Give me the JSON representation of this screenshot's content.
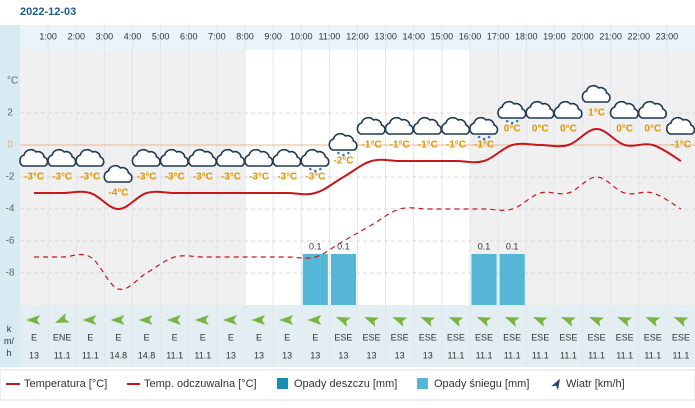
{
  "chart_data": {
    "type": "line",
    "title": "2022-12-03",
    "categories": [
      null,
      "1:00",
      "2:00",
      "3:00",
      "4:00",
      "5:00",
      "6:00",
      "7:00",
      "8:00",
      "9:00",
      "10:00",
      "11:00",
      "12:00",
      "13:00",
      "14:00",
      "15:00",
      "16:00",
      "17:00",
      "18:00",
      "19:00",
      "20:00",
      "21:00",
      "22:00",
      "23:00"
    ],
    "y_label": "°C",
    "ylim": [
      -10,
      6
    ],
    "yticks": [
      -8,
      -6,
      -4,
      -2,
      0,
      2
    ],
    "grid": true,
    "series": [
      {
        "name": "Temperatura [°C]",
        "color": "#c8161d",
        "values": [
          -3,
          -3,
          -3,
          -4,
          -3,
          -3,
          -3,
          -3,
          -3,
          -3,
          -3,
          -2,
          -1,
          -1,
          -1,
          -1,
          -1,
          0,
          0,
          0,
          1,
          0,
          0,
          -1
        ],
        "value_labels": [
          "-3°C",
          "-3°C",
          "-3°C",
          "-4°C",
          "-3°C",
          "-3°C",
          "-3°C",
          "-3°C",
          "-3°C",
          "-3°C",
          "-3°C",
          "-2°C",
          "-1°C",
          "-1°C",
          "-1°C",
          "-1°C",
          "-1°C",
          "0°C",
          "0°C",
          "0°C",
          "1°C",
          "0°C",
          "0°C",
          "-1°C"
        ]
      },
      {
        "name": "Temp. odczuwalna [°C]",
        "color": "#c8161d",
        "dashed": true,
        "values": [
          -7,
          -7,
          -7,
          -9,
          -8,
          -7,
          -7,
          -7,
          -7,
          -7,
          -7,
          -6,
          -5,
          -4,
          -4,
          -4,
          -4,
          -4,
          -3,
          -3,
          -2,
          -3,
          -3,
          -4
        ]
      },
      {
        "name": "Opady deszczu [mm]",
        "color": "#1b8db3",
        "type": "bar",
        "values": [
          null,
          null,
          null,
          null,
          null,
          null,
          null,
          null,
          null,
          null,
          null,
          null,
          null,
          null,
          null,
          null,
          null,
          null,
          null,
          null,
          null,
          null,
          null,
          null
        ]
      },
      {
        "name": "Opady śniegu [mm]",
        "color": "#55b6d6",
        "type": "bar",
        "values": [
          null,
          null,
          null,
          null,
          null,
          null,
          null,
          null,
          null,
          null,
          0.1,
          0.1,
          null,
          null,
          null,
          null,
          0.1,
          0.1,
          null,
          null,
          null,
          null,
          null,
          null
        ]
      }
    ],
    "wind": {
      "name": "Wiatr [km/h]",
      "unit_label": "km/h",
      "directions": [
        "E",
        "ENE",
        "E",
        "E",
        "E",
        "E",
        "E",
        "E",
        "E",
        "E",
        "E",
        "ESE",
        "ESE",
        "ESE",
        "ESE",
        "ESE",
        "ESE",
        "ESE",
        "ESE",
        "ESE",
        "ESE",
        "ESE",
        "ESE",
        "ESE"
      ],
      "values": [
        13,
        11.1,
        11.1,
        14.8,
        14.8,
        11.1,
        11.1,
        13,
        13,
        13,
        13,
        13,
        13,
        13,
        13,
        11.1,
        11.1,
        11.1,
        11.1,
        11.1,
        11.1,
        11.1,
        11.1,
        11.1
      ]
    }
  }
}
